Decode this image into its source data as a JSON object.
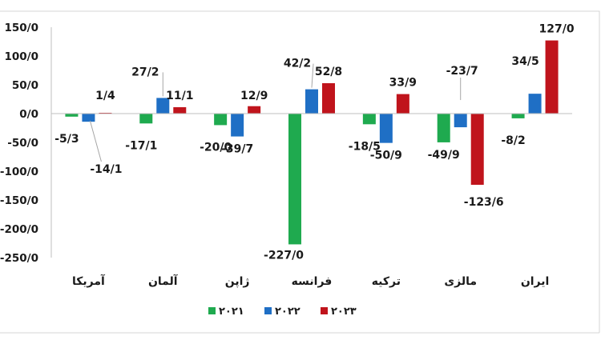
{
  "chart_data": {
    "type": "bar",
    "categories": [
      "آمریکا",
      "آلمان",
      "ژاپن",
      "فرانسه",
      "ترکیه",
      "مالزی",
      "ایران"
    ],
    "series": [
      {
        "name": "۲۰۲۱",
        "color": "#1faa4f",
        "values": [
          -5.3,
          -17.1,
          -20.0,
          -227.0,
          -18.5,
          -49.9,
          -8.2
        ],
        "labels": [
          "-5/3",
          "-17/1",
          "-20/0",
          "-227/0",
          "-18/5",
          "-49/9",
          "-8/2"
        ]
      },
      {
        "name": "۲۰۲۲",
        "color": "#1f6fc5",
        "values": [
          -14.1,
          27.2,
          -39.7,
          42.2,
          -50.9,
          -23.7,
          34.5
        ],
        "labels": [
          "-14/1",
          "27/2",
          "-39/7",
          "42/2",
          "-50/9",
          "-23/7",
          "34/5"
        ]
      },
      {
        "name": "۲۰۲۳",
        "color": "#c0141c",
        "values": [
          1.4,
          11.1,
          12.9,
          52.8,
          33.9,
          -123.6,
          127.0
        ],
        "labels": [
          "1/4",
          "11/1",
          "12/9",
          "52/8",
          "33/9",
          "-123/6",
          "127/0"
        ]
      }
    ],
    "ylim": [
      -250,
      150
    ],
    "yticks": [
      150,
      100,
      50,
      0,
      -50,
      -100,
      -150,
      -200,
      -250
    ],
    "ytick_labels": [
      "150/0",
      "100/0",
      "50/0",
      "0/0",
      "-50/0",
      "-100/0",
      "-150/0",
      "-200/0",
      "-250/0"
    ],
    "legend_position": "bottom",
    "grid": false
  }
}
